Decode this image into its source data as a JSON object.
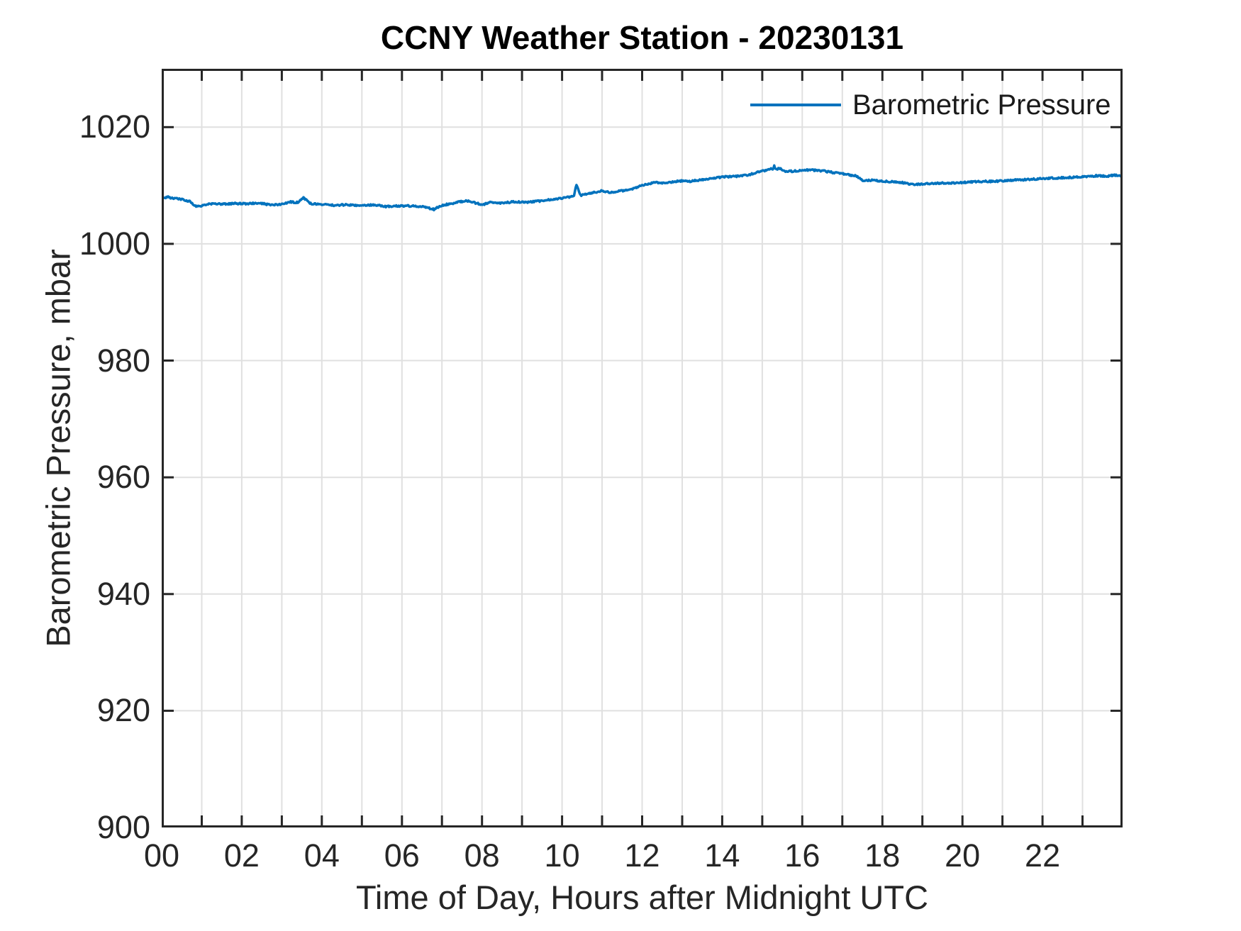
{
  "chart_data": {
    "type": "line",
    "title": "CCNY Weather Station - 20230131",
    "xlabel": "Time of Day, Hours after Midnight UTC",
    "ylabel": "Barometric Pressure, mbar",
    "xlim": [
      0,
      24
    ],
    "ylim": [
      900,
      1030
    ],
    "grid": true,
    "xticks": [
      0,
      1,
      2,
      3,
      4,
      5,
      6,
      7,
      8,
      9,
      10,
      11,
      12,
      13,
      14,
      15,
      16,
      17,
      18,
      19,
      20,
      21,
      22,
      23,
      24
    ],
    "xtick_label_hours": [
      0,
      2,
      4,
      6,
      8,
      10,
      12,
      14,
      16,
      18,
      20,
      22
    ],
    "xtick_labels": [
      "00",
      "02",
      "04",
      "06",
      "08",
      "10",
      "12",
      "14",
      "16",
      "18",
      "20",
      "22"
    ],
    "yticks": [
      900,
      920,
      940,
      960,
      980,
      1000,
      1020
    ],
    "ytick_labels": [
      "900",
      "920",
      "940",
      "960",
      "980",
      "1000",
      "1020"
    ],
    "legend": {
      "position": "top-right",
      "box": false,
      "entries": [
        "Barometric Pressure"
      ]
    },
    "noise_amplitude": 0.14,
    "style": {
      "line_color": "#0072BD",
      "axis_color": "#262626",
      "grid_color": "#E0E0E0",
      "background": "#FFFFFF",
      "title_color": "#000000"
    },
    "series": [
      {
        "name": "Barometric Pressure",
        "color": "#0072BD",
        "units": "mbar",
        "x": [
          0,
          0.15,
          0.3,
          0.5,
          0.7,
          0.85,
          1.0,
          1.2,
          1.5,
          1.8,
          2.1,
          2.4,
          2.7,
          3.0,
          3.2,
          3.4,
          3.55,
          3.7,
          4.0,
          4.3,
          4.6,
          5.0,
          5.3,
          5.6,
          5.9,
          6.2,
          6.5,
          6.8,
          7.0,
          7.3,
          7.6,
          7.8,
          8.0,
          8.2,
          8.5,
          8.8,
          9.1,
          9.4,
          9.7,
          10.0,
          10.3,
          10.36,
          10.45,
          10.7,
          11.0,
          11.2,
          11.5,
          11.75,
          12.0,
          12.3,
          12.6,
          12.9,
          13.2,
          13.5,
          13.8,
          14.1,
          14.4,
          14.7,
          15.0,
          15.28,
          15.3,
          15.34,
          15.45,
          15.6,
          15.9,
          16.2,
          16.5,
          16.8,
          17.1,
          17.35,
          17.5,
          17.8,
          18.1,
          18.4,
          18.75,
          19.1,
          19.4,
          19.7,
          20.0,
          20.4,
          20.8,
          21.2,
          21.6,
          22.0,
          22.4,
          22.8,
          23.1,
          23.4,
          23.6,
          23.8,
          23.95,
          24.0
        ],
        "y": [
          1007.7,
          1008.0,
          1007.8,
          1007.6,
          1007.3,
          1006.4,
          1006.5,
          1006.9,
          1006.8,
          1006.9,
          1006.9,
          1007.0,
          1006.7,
          1006.8,
          1007.2,
          1007.1,
          1007.9,
          1006.9,
          1006.8,
          1006.6,
          1006.7,
          1006.6,
          1006.7,
          1006.4,
          1006.5,
          1006.5,
          1006.4,
          1005.9,
          1006.6,
          1007.0,
          1007.4,
          1007.1,
          1006.7,
          1007.1,
          1007.0,
          1007.2,
          1007.1,
          1007.3,
          1007.6,
          1007.8,
          1008.2,
          1010.2,
          1008.3,
          1008.7,
          1009.1,
          1008.8,
          1009.1,
          1009.4,
          1010.0,
          1010.5,
          1010.4,
          1010.8,
          1010.7,
          1011.0,
          1011.3,
          1011.5,
          1011.6,
          1011.9,
          1012.5,
          1012.9,
          1013.3,
          1012.8,
          1012.9,
          1012.4,
          1012.5,
          1012.7,
          1012.5,
          1012.2,
          1011.9,
          1011.6,
          1010.9,
          1010.9,
          1010.7,
          1010.6,
          1010.2,
          1010.3,
          1010.4,
          1010.4,
          1010.5,
          1010.7,
          1010.7,
          1010.9,
          1011.0,
          1011.2,
          1011.3,
          1011.4,
          1011.5,
          1011.7,
          1011.6,
          1011.8,
          1011.6,
          1011.7
        ]
      }
    ]
  }
}
